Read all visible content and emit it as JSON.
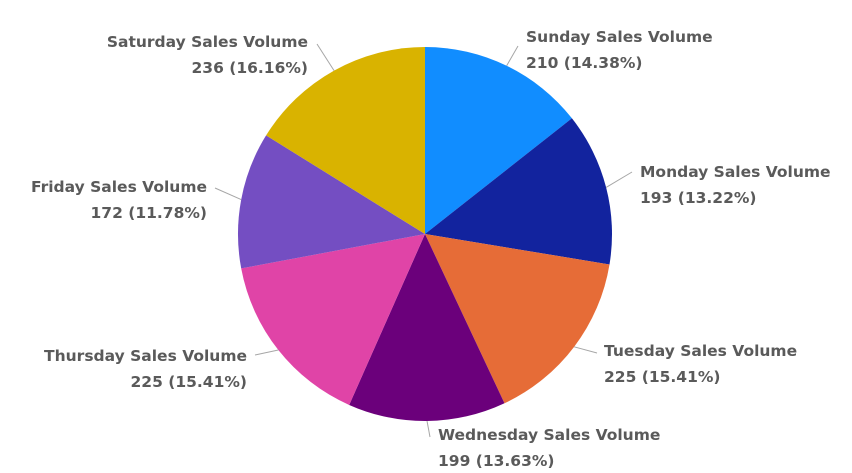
{
  "chart_data": {
    "type": "pie",
    "title": "",
    "categories": [
      "Sunday Sales Volume",
      "Monday Sales Volume",
      "Tuesday Sales Volume",
      "Wednesday Sales Volume",
      "Thursday Sales Volume",
      "Friday Sales Volume",
      "Saturday Sales Volume"
    ],
    "values": [
      210,
      193,
      225,
      199,
      225,
      172,
      236
    ],
    "value_labels": [
      "210 (14.38%)",
      "193 (13.22%)",
      "225 (15.41%)",
      "199 (13.63%)",
      "225 (15.41%)",
      "172 (11.78%)",
      "236 (16.16%)"
    ],
    "colors": [
      "#118DFF",
      "#12239E",
      "#E66C37",
      "#6B007B",
      "#E044A7",
      "#744EC2",
      "#D9B300"
    ],
    "start_angle_deg": 0,
    "direction": "clockwise",
    "legend": "none",
    "data_labels": "outside"
  }
}
